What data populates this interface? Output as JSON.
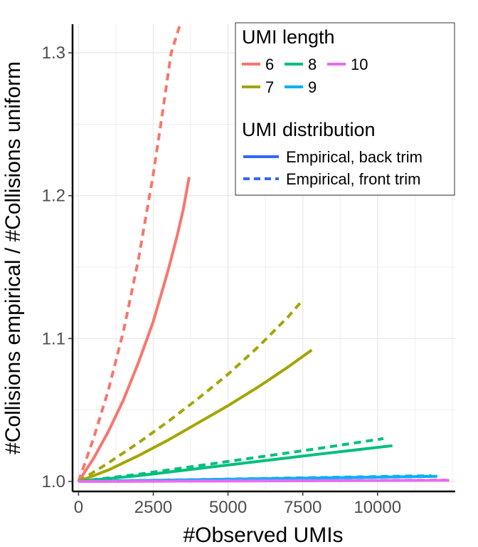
{
  "chart_data": {
    "type": "line",
    "xlabel": "#Observed UMIs",
    "ylabel": "#Collisions empirical / #Collisions uniform",
    "xlim": [
      -200,
      12600
    ],
    "ylim": [
      0.993,
      1.32
    ],
    "x_ticks": [
      0,
      2500,
      5000,
      7500,
      10000
    ],
    "x_tick_labels": [
      "0",
      "2500",
      "5000",
      "7500",
      "10000"
    ],
    "y_ticks": [
      1.0,
      1.1,
      1.2,
      1.3
    ],
    "y_tick_labels": [
      "1.0",
      "1.1",
      "1.2",
      "1.3"
    ],
    "grid": true,
    "legend": {
      "placement": "top-right",
      "color_title": "UMI length",
      "color_entries": [
        {
          "label": "6",
          "color": "#F8766D"
        },
        {
          "label": "8",
          "color": "#00BF7D"
        },
        {
          "label": "10",
          "color": "#E76BF3"
        },
        {
          "label": "7",
          "color": "#A3A500"
        },
        {
          "label": "9",
          "color": "#00B0F6"
        }
      ],
      "linetype_title": "UMI distribution",
      "linetype_entries": [
        {
          "label": "Empirical, back trim",
          "style": "solid"
        },
        {
          "label": "Empirical, front trim",
          "style": "dashed"
        }
      ],
      "key_color": "#3366FF"
    },
    "series": [
      {
        "umi_length": "6",
        "distribution": "Empirical, back trim",
        "color": "#F8766D",
        "style": "solid",
        "x": [
          0,
          500,
          1000,
          1500,
          2000,
          2500,
          3000,
          3300,
          3500,
          3700
        ],
        "y": [
          1.0,
          1.016,
          1.035,
          1.057,
          1.083,
          1.112,
          1.148,
          1.172,
          1.19,
          1.213
        ]
      },
      {
        "umi_length": "6",
        "distribution": "Empirical, front trim",
        "color": "#F8766D",
        "style": "dashed",
        "x": [
          0,
          500,
          1000,
          1500,
          2000,
          2500,
          2800,
          3100,
          3400
        ],
        "y": [
          1.0,
          1.03,
          1.064,
          1.105,
          1.155,
          1.215,
          1.257,
          1.3,
          1.32
        ]
      },
      {
        "umi_length": "7",
        "distribution": "Empirical, back trim",
        "color": "#A3A500",
        "style": "solid",
        "x": [
          0,
          1000,
          2000,
          3000,
          4000,
          5000,
          6000,
          7000,
          7800
        ],
        "y": [
          1.0,
          1.008,
          1.018,
          1.029,
          1.041,
          1.053,
          1.066,
          1.08,
          1.092
        ]
      },
      {
        "umi_length": "7",
        "distribution": "Empirical, front trim",
        "color": "#A3A500",
        "style": "dashed",
        "x": [
          0,
          1000,
          2000,
          3000,
          4000,
          5000,
          6000,
          7000,
          7500
        ],
        "y": [
          1.0,
          1.013,
          1.027,
          1.042,
          1.058,
          1.075,
          1.094,
          1.115,
          1.127
        ]
      },
      {
        "umi_length": "8",
        "distribution": "Empirical, back trim",
        "color": "#00BF7D",
        "style": "solid",
        "x": [
          0,
          2000,
          4000,
          6000,
          8000,
          10500
        ],
        "y": [
          1.0,
          1.004,
          1.009,
          1.014,
          1.019,
          1.025
        ]
      },
      {
        "umi_length": "8",
        "distribution": "Empirical, front trim",
        "color": "#00BF7D",
        "style": "dashed",
        "x": [
          0,
          2000,
          4000,
          6000,
          8000,
          10200
        ],
        "y": [
          1.0,
          1.005,
          1.011,
          1.017,
          1.023,
          1.03
        ]
      },
      {
        "umi_length": "9",
        "distribution": "Empirical, back trim",
        "color": "#00B0F6",
        "style": "solid",
        "x": [
          0,
          4000,
          8000,
          12000
        ],
        "y": [
          1.0,
          1.0012,
          1.0024,
          1.0036
        ]
      },
      {
        "umi_length": "9",
        "distribution": "Empirical, front trim",
        "color": "#00B0F6",
        "style": "dashed",
        "x": [
          0,
          4000,
          8000,
          11800
        ],
        "y": [
          1.0,
          1.0013,
          1.0027,
          1.004
        ]
      },
      {
        "umi_length": "10",
        "distribution": "Empirical, back trim",
        "color": "#E76BF3",
        "style": "solid",
        "x": [
          0,
          6000,
          12400
        ],
        "y": [
          1.0,
          1.0004,
          1.0008
        ]
      },
      {
        "umi_length": "10",
        "distribution": "Empirical, front trim",
        "color": "#E76BF3",
        "style": "dashed",
        "x": [
          0,
          6000,
          12300
        ],
        "y": [
          1.0,
          1.0005,
          1.001
        ]
      }
    ]
  }
}
